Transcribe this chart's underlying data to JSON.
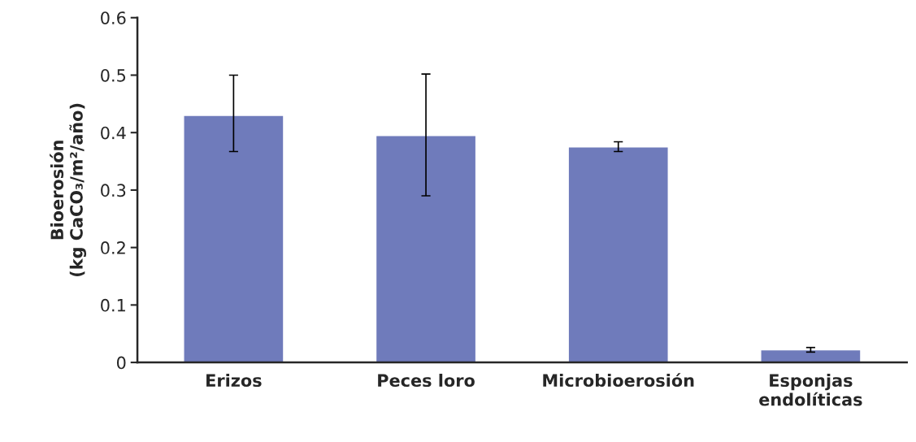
{
  "chart_data": {
    "type": "bar",
    "ylabel": "Bioerosión\n(kg CaCO₃/m²/año)",
    "categories": [
      "Erizos",
      "Peces loro",
      "Microbioerosión",
      "Esponjas\nendolíticas"
    ],
    "values": [
      0.43,
      0.395,
      0.375,
      0.022
    ],
    "errors": [
      [
        0.367,
        0.5
      ],
      [
        0.29,
        0.502
      ],
      [
        0.367,
        0.384
      ],
      [
        0.018,
        0.026
      ]
    ],
    "color": "#6f7bbb",
    "ylim": [
      0,
      0.6
    ],
    "yticks": [
      0,
      0.1,
      0.2,
      0.3,
      0.4,
      0.5,
      0.6
    ],
    "grid": false,
    "legend": false
  }
}
